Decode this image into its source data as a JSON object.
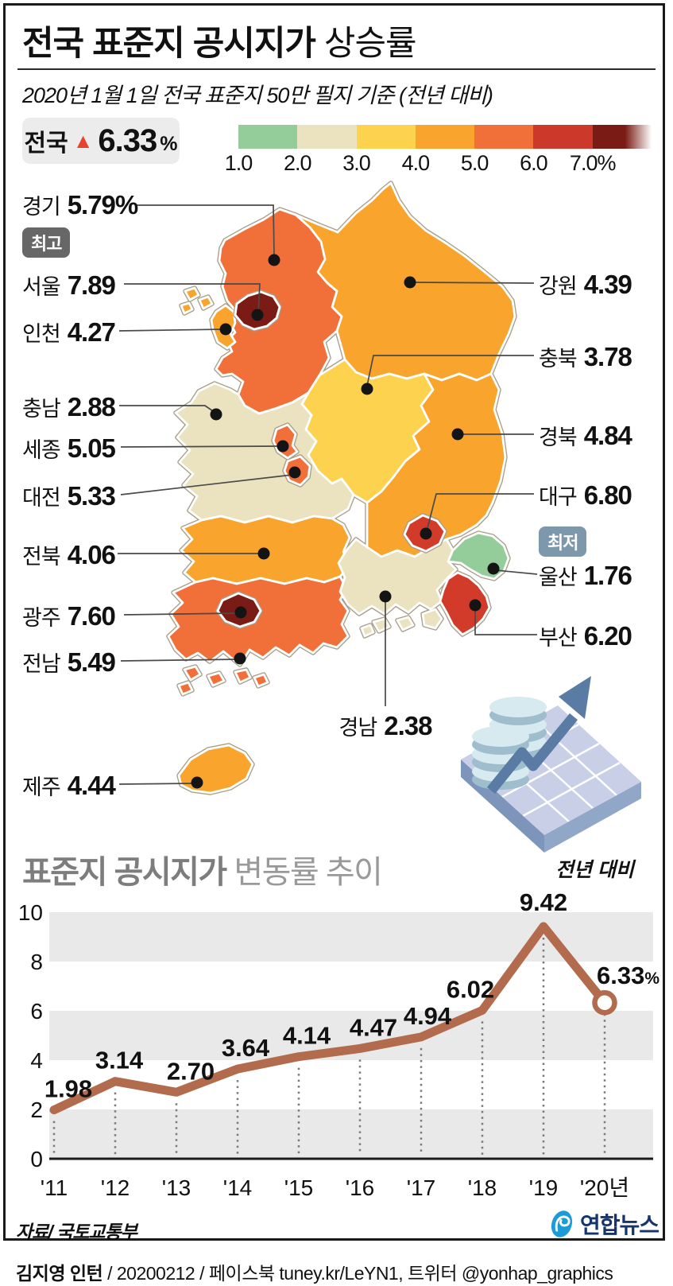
{
  "header": {
    "title_pre": "전국 ",
    "title_strong": "표준지 공시지가",
    "title_post": " 상승률",
    "subtitle": "2020년 1월 1일 전국 표준지 50만 필지 기준 (전년 대비)",
    "badge": {
      "region": "전국",
      "arrow": "▲",
      "value": "6.33",
      "unit": "%"
    }
  },
  "legend": {
    "ticks": [
      "1.0",
      "2.0",
      "3.0",
      "4.0",
      "5.0",
      "6.0",
      "7.0%"
    ],
    "colors": [
      "#94cd9a",
      "#ebe2c0",
      "#fcd24f",
      "#f8a42d",
      "#f1703a",
      "#cc392a",
      "#7a1c15"
    ]
  },
  "map": {
    "highest_badge": "최고",
    "lowest_badge": "최저",
    "regions": [
      {
        "name": "경기",
        "value": "5.79%",
        "color": "#f1703a"
      },
      {
        "name": "서울",
        "value": "7.89",
        "color": "#7a1c15"
      },
      {
        "name": "인천",
        "value": "4.27",
        "color": "#f8a42d"
      },
      {
        "name": "충남",
        "value": "2.88",
        "color": "#ebe2c0"
      },
      {
        "name": "세종",
        "value": "5.05",
        "color": "#f1703a"
      },
      {
        "name": "대전",
        "value": "5.33",
        "color": "#f1703a"
      },
      {
        "name": "전북",
        "value": "4.06",
        "color": "#f8a42d"
      },
      {
        "name": "광주",
        "value": "7.60",
        "color": "#7a1c15"
      },
      {
        "name": "전남",
        "value": "5.49",
        "color": "#f1703a"
      },
      {
        "name": "제주",
        "value": "4.44",
        "color": "#f8a42d"
      },
      {
        "name": "강원",
        "value": "4.39",
        "color": "#f8a42d"
      },
      {
        "name": "충북",
        "value": "3.78",
        "color": "#fcd24f"
      },
      {
        "name": "경북",
        "value": "4.84",
        "color": "#f8a42d"
      },
      {
        "name": "대구",
        "value": "6.80",
        "color": "#d23a2a"
      },
      {
        "name": "울산",
        "value": "1.76",
        "color": "#94cd9a"
      },
      {
        "name": "부산",
        "value": "6.20",
        "color": "#d23a2a"
      },
      {
        "name": "경남",
        "value": "2.38",
        "color": "#ebe2c0"
      }
    ]
  },
  "illustration": {
    "caption": "전년 대비"
  },
  "trend": {
    "title_strong": "표준지 공시지가",
    "title_light": " 변동률 추이"
  },
  "chart_data": {
    "type": "line",
    "title": "표준지 공시지가 변동률 추이",
    "x_labels": [
      "'11",
      "'12",
      "'13",
      "'14",
      "'15",
      "'16",
      "'17",
      "'18",
      "'19",
      "'20년"
    ],
    "values": [
      1.98,
      3.14,
      2.7,
      3.64,
      4.14,
      4.47,
      4.94,
      6.02,
      9.42,
      6.33
    ],
    "value_labels": [
      "1.98",
      "3.14",
      "2.70",
      "3.64",
      "4.14",
      "4.47",
      "4.94",
      "6.02",
      "9.42",
      "6.33"
    ],
    "last_unit": "%",
    "y_ticks": [
      10,
      8,
      6,
      4,
      2,
      0
    ],
    "ylim": [
      0,
      10
    ],
    "shaded_bands": [
      [
        8,
        10
      ],
      [
        4,
        6
      ],
      [
        0,
        2
      ]
    ],
    "band_color": "#e9e9e9",
    "line_color": "#b26b4d",
    "legend_position": "none",
    "grid": "banded"
  },
  "footer": {
    "source": "자료/ 국토교통부",
    "logo_text": "연합뉴스",
    "credit_name": "김지영 인턴",
    "credit_rest": " / 20200212 / 페이스북 tuney.kr/LeYN1, 트위터 @yonhap_graphics"
  }
}
